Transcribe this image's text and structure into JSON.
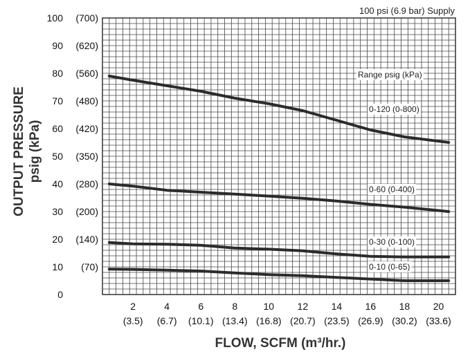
{
  "chart_data": {
    "type": "line",
    "supply_note": "100 psi (6.9 bar) Supply",
    "legend_title": "Range psig (kPa)",
    "xlabel": "FLOW, SCFM (m³/hr.)",
    "ylabel_line1": "OUTPUT PRESSURE",
    "ylabel_line2": "psig (kPa)",
    "xlim": [
      0.2,
      21.0
    ],
    "ylim": [
      0,
      100
    ],
    "grid": true,
    "x_ticks": [
      {
        "value": 2,
        "label": "2",
        "sublabel": "(3.5)"
      },
      {
        "value": 4,
        "label": "4",
        "sublabel": "(6.7)"
      },
      {
        "value": 6,
        "label": "6",
        "sublabel": "(10.1)"
      },
      {
        "value": 8,
        "label": "8",
        "sublabel": "(13.4)"
      },
      {
        "value": 10,
        "label": "10",
        "sublabel": "(16.8)"
      },
      {
        "value": 12,
        "label": "12",
        "sublabel": "(20.7)"
      },
      {
        "value": 14,
        "label": "14",
        "sublabel": "(23.5)"
      },
      {
        "value": 16,
        "label": "16",
        "sublabel": "(26.9)"
      },
      {
        "value": 18,
        "label": "18",
        "sublabel": "(30.2)"
      },
      {
        "value": 20,
        "label": "20",
        "sublabel": "(33.6)"
      }
    ],
    "y_ticks": [
      {
        "value": 0,
        "label": "0",
        "sublabel": ""
      },
      {
        "value": 10,
        "label": "10",
        "sublabel": "(70)"
      },
      {
        "value": 20,
        "label": "20",
        "sublabel": "(140)"
      },
      {
        "value": 30,
        "label": "30",
        "sublabel": "(200)"
      },
      {
        "value": 40,
        "label": "40",
        "sublabel": "(280)"
      },
      {
        "value": 50,
        "label": "50",
        "sublabel": "(350)"
      },
      {
        "value": 60,
        "label": "60",
        "sublabel": "(420)"
      },
      {
        "value": 70,
        "label": "70",
        "sublabel": "(480)"
      },
      {
        "value": 80,
        "label": "80",
        "sublabel": "(560)"
      },
      {
        "value": 90,
        "label": "90",
        "sublabel": "(620)"
      },
      {
        "value": 100,
        "label": "100",
        "sublabel": "(700)"
      }
    ],
    "series": [
      {
        "name": "0-120 (0-800)",
        "label_y": 67,
        "x": [
          0.6,
          2,
          4,
          6,
          8,
          10,
          12,
          14,
          16,
          18,
          20.6
        ],
        "y": [
          79,
          77.5,
          75.5,
          73.5,
          71,
          69,
          66.5,
          63,
          59.5,
          57,
          55
        ]
      },
      {
        "name": "0-60 (0-400)",
        "label_y": 38,
        "x": [
          0.6,
          2,
          4,
          6,
          8,
          10,
          12,
          14,
          16,
          18,
          20.6
        ],
        "y": [
          40,
          39.2,
          37.7,
          37,
          36.3,
          35.6,
          34.8,
          33.8,
          32.6,
          31.6,
          30
        ]
      },
      {
        "name": "0-30 (0-100)",
        "label_y": 19,
        "x": [
          0.6,
          2,
          4,
          6,
          8,
          10,
          12,
          14,
          16,
          18,
          20.6
        ],
        "y": [
          18.8,
          18.3,
          18.2,
          17.8,
          16.8,
          16.4,
          15.8,
          14.7,
          13.8,
          13.6,
          13.6
        ]
      },
      {
        "name": "0-10 (0-65)",
        "label_y": 10,
        "x": [
          0.6,
          2,
          4,
          6,
          8,
          10,
          12,
          14,
          16,
          18,
          20.6
        ],
        "y": [
          9.2,
          9.1,
          8.8,
          8.5,
          7.8,
          7.2,
          6.8,
          6.2,
          5.6,
          5.0,
          5.0
        ]
      }
    ]
  }
}
